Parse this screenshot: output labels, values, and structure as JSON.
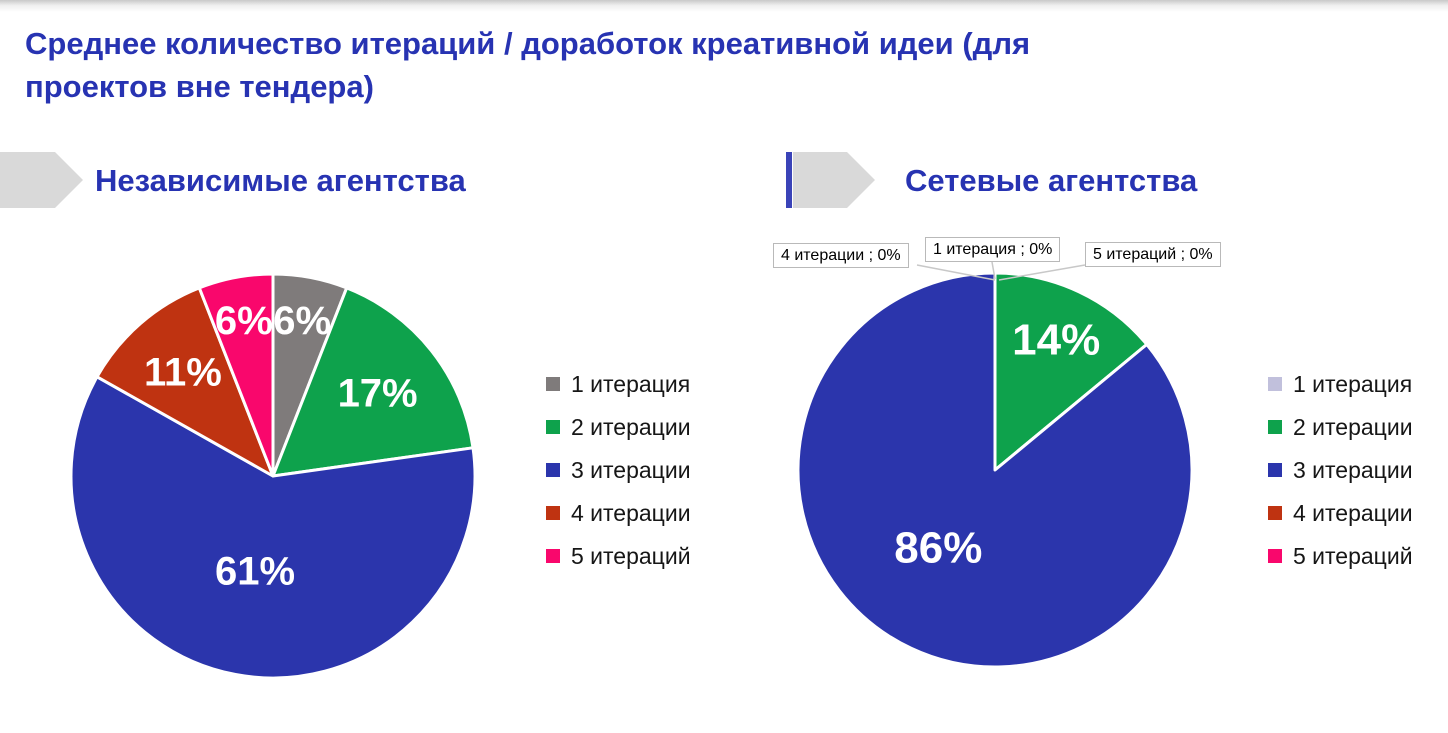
{
  "page": {
    "title": "Среднее количество итераций / доработок креативной идеи (для проектов вне тендера)",
    "title_lines": [
      "Среднее количество итераций / доработок креативной идеи (для",
      "проектов вне тендера)"
    ],
    "colors": {
      "title_text": "#2733b2",
      "header_arrow": "#d9d9d9",
      "header_accent_bar": "#3a43b8",
      "callout_border": "#b9b9b9",
      "leader_line": "#c8c8c8"
    }
  },
  "chart_data": [
    {
      "type": "pie",
      "title": "Независимые агентства",
      "legend_position": "right",
      "start_angle_deg": 0,
      "direction": "clockwise",
      "slices": [
        {
          "label": "1 итерация",
          "value": 6,
          "display": "6%",
          "color": "#7f7b7b",
          "label_r": 0.78
        },
        {
          "label": "2 итерации",
          "value": 17,
          "display": "17%",
          "color": "#0ea24c",
          "label_r": 0.66
        },
        {
          "label": "3 итерации",
          "value": 61,
          "display": "61%",
          "color": "#2b35ac",
          "label_r": 0.48
        },
        {
          "label": "4 итерации",
          "value": 11,
          "display": "11%",
          "color": "#bf3311",
          "label_r": 0.68
        },
        {
          "label": "5 итераций",
          "value": 6,
          "display": "6%",
          "color": "#f9076c",
          "label_r": 0.78
        }
      ],
      "legend": [
        {
          "label": "1 итерация",
          "color": "#7f7b7b"
        },
        {
          "label": "2 итерации",
          "color": "#0ea24c"
        },
        {
          "label": "3 итерации",
          "color": "#2b35ac"
        },
        {
          "label": "4 итерации",
          "color": "#bf3311"
        },
        {
          "label": "5 итераций",
          "color": "#f9076c"
        }
      ]
    },
    {
      "type": "pie",
      "title": "Сетевые агентства",
      "legend_position": "right",
      "start_angle_deg": 0,
      "direction": "clockwise",
      "slices": [
        {
          "label": "1 итерация",
          "value": 0,
          "display": "0%",
          "color": "#c1c0dc"
        },
        {
          "label": "2 итерации",
          "value": 14,
          "display": "14%",
          "color": "#0ea24c",
          "label_r": 0.73
        },
        {
          "label": "3 итерации",
          "value": 86,
          "display": "86%",
          "color": "#2b35ac",
          "label_r": 0.49,
          "label_angle_deg": 216
        },
        {
          "label": "4 итерации",
          "value": 0,
          "display": "0%",
          "color": "#bf3311"
        },
        {
          "label": "5 итераций",
          "value": 0,
          "display": "0%",
          "color": "#f9076c"
        }
      ],
      "callouts": [
        {
          "text": "4 итерации ; 0%"
        },
        {
          "text": "1 итерация ; 0%"
        },
        {
          "text": "5 итераций ; 0%"
        }
      ],
      "legend": [
        {
          "label": "1 итерация",
          "color": "#c1c0dc"
        },
        {
          "label": "2 итерации",
          "color": "#0ea24c"
        },
        {
          "label": "3 итерации",
          "color": "#2b35ac"
        },
        {
          "label": "4 итерации",
          "color": "#bf3311"
        },
        {
          "label": "5 итераций",
          "color": "#f9076c"
        }
      ]
    }
  ]
}
